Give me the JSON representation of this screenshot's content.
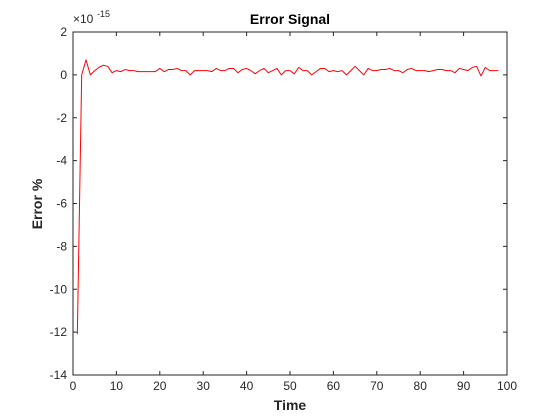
{
  "chart_data": {
    "type": "line",
    "title": "Error Signal",
    "xlabel": "Time",
    "ylabel": "Error %",
    "y_multiplier": "×10",
    "y_exponent": "-15",
    "xlim": [
      0,
      100
    ],
    "ylim": [
      -14,
      2
    ],
    "x_ticks": [
      "0",
      "10",
      "20",
      "30",
      "40",
      "50",
      "60",
      "70",
      "80",
      "90",
      "100"
    ],
    "y_ticks": [
      "2",
      "0",
      "-2",
      "-4",
      "-6",
      "-8",
      "-10",
      "-12",
      "-14"
    ],
    "grid": false,
    "series": [
      {
        "color": "#ff0000",
        "x": [
          1,
          2,
          3,
          4,
          5,
          6,
          7,
          8,
          9,
          10,
          11,
          12,
          13,
          14,
          15,
          16,
          17,
          18,
          19,
          20,
          21,
          22,
          23,
          24,
          25,
          26,
          27,
          28,
          29,
          30,
          31,
          32,
          33,
          34,
          35,
          36,
          37,
          38,
          39,
          40,
          41,
          42,
          43,
          44,
          45,
          46,
          47,
          48,
          49,
          50,
          51,
          52,
          53,
          54,
          55,
          56,
          57,
          58,
          59,
          60,
          61,
          62,
          63,
          64,
          65,
          66,
          67,
          68,
          69,
          70,
          71,
          72,
          73,
          74,
          75,
          76,
          77,
          78,
          79,
          80,
          81,
          82,
          83,
          84,
          85,
          86,
          87,
          88,
          89,
          90,
          91,
          92,
          93,
          94,
          95,
          96,
          97,
          98
        ],
        "y": [
          -12.1,
          0.0,
          0.7,
          0.0,
          0.2,
          0.35,
          0.45,
          0.4,
          0.1,
          0.2,
          0.15,
          0.25,
          0.2,
          0.2,
          0.15,
          0.15,
          0.15,
          0.15,
          0.15,
          0.3,
          0.15,
          0.25,
          0.25,
          0.3,
          0.2,
          0.2,
          0.0,
          0.2,
          0.2,
          0.2,
          0.2,
          0.15,
          0.3,
          0.2,
          0.2,
          0.3,
          0.3,
          0.1,
          0.25,
          0.3,
          0.2,
          0.05,
          0.2,
          0.3,
          0.1,
          0.2,
          0.3,
          0.0,
          0.2,
          0.2,
          0.05,
          0.35,
          0.2,
          0.2,
          0.0,
          0.15,
          0.3,
          0.3,
          0.15,
          0.2,
          0.15,
          0.2,
          0.0,
          0.2,
          0.4,
          0.2,
          0.0,
          0.3,
          0.2,
          0.2,
          0.25,
          0.25,
          0.3,
          0.2,
          0.2,
          0.1,
          0.25,
          0.3,
          0.2,
          0.2,
          0.2,
          0.15,
          0.2,
          0.25,
          0.25,
          0.2,
          0.2,
          0.1,
          0.3,
          0.25,
          0.2,
          0.35,
          0.4,
          -0.05,
          0.35,
          0.2,
          0.2,
          0.2
        ]
      }
    ]
  }
}
